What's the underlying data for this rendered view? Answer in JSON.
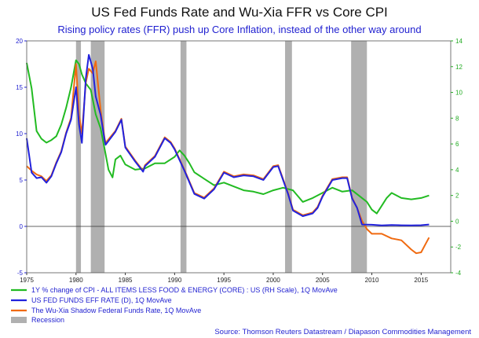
{
  "title": "US Fed Funds Rate and Wu-Xia FFR vs Core CPI",
  "subtitle": "Rising policy rates (FFR) push up Core Inflation, instead of the other way around",
  "source": "Source: Thomson Reuters Datastream / Diapason Commodities Management",
  "colors": {
    "cpi": "#22bb22",
    "ffr": "#2222dd",
    "shadow": "#f06a10",
    "recession": "#b0b0b0",
    "left_axis": "#1f1fd0",
    "right_axis": "#22aa22"
  },
  "chart_data": {
    "type": "line",
    "xlim": [
      1975,
      2018
    ],
    "x_ticks": [
      1975,
      1980,
      1985,
      1990,
      1995,
      2000,
      2005,
      2010,
      2015
    ],
    "left_axis": {
      "ylim": [
        -5,
        20
      ],
      "ticks": [
        -5,
        0,
        5,
        10,
        15,
        20
      ]
    },
    "right_axis": {
      "ylim": [
        -4,
        14
      ],
      "ticks": [
        -4,
        -2,
        0,
        2,
        4,
        6,
        8,
        10,
        12,
        14
      ]
    },
    "grid": false,
    "legend_position": "bottom-left",
    "recessions": [
      [
        1980.0,
        1980.5
      ],
      [
        1981.5,
        1982.9
      ],
      [
        1990.6,
        1991.2
      ],
      [
        2001.2,
        2001.9
      ],
      [
        2007.9,
        2009.5
      ]
    ],
    "series": [
      {
        "key": "cpi",
        "name": "1Y % change of CPI - ALL ITEMS LESS FOOD & ENERGY (CORE) : US (RH Scale), 1Q MovAve",
        "axis": "right",
        "x": [
          1975,
          1975.5,
          1976,
          1976.5,
          1977,
          1977.5,
          1978,
          1978.5,
          1979,
          1979.5,
          1980,
          1980.3,
          1980.6,
          1981,
          1981.5,
          1982,
          1982.5,
          1983,
          1983.3,
          1983.7,
          1984,
          1984.5,
          1985,
          1986,
          1987,
          1988,
          1989,
          1990,
          1990.5,
          1991,
          1991.5,
          1992,
          1993,
          1994,
          1995,
          1996,
          1997,
          1998,
          1999,
          2000,
          2001,
          2002,
          2003,
          2004,
          2005,
          2006,
          2007,
          2008,
          2009,
          2009.5,
          2010,
          2010.5,
          2011,
          2011.5,
          2012,
          2013,
          2014,
          2015,
          2015.8
        ],
        "values": [
          12.3,
          10.3,
          7.0,
          6.4,
          6.1,
          6.3,
          6.6,
          7.5,
          8.8,
          10.4,
          12.5,
          12.2,
          11.4,
          10.7,
          10.2,
          8.3,
          7.2,
          5.2,
          4.0,
          3.4,
          4.8,
          5.1,
          4.4,
          4.0,
          4.1,
          4.5,
          4.5,
          5.0,
          5.5,
          5.1,
          4.5,
          3.8,
          3.3,
          2.8,
          3.0,
          2.7,
          2.4,
          2.3,
          2.1,
          2.4,
          2.6,
          2.4,
          1.5,
          1.8,
          2.2,
          2.6,
          2.3,
          2.4,
          1.8,
          1.5,
          0.9,
          0.6,
          1.2,
          1.8,
          2.2,
          1.8,
          1.7,
          1.8,
          2.0
        ]
      },
      {
        "key": "ffr",
        "name": "US FED FUNDS EFF RATE (D), 1Q MovAve",
        "axis": "left",
        "x": [
          1975,
          1975.5,
          1976,
          1976.5,
          1977,
          1977.5,
          1978,
          1978.5,
          1979,
          1979.5,
          1980,
          1980.3,
          1980.6,
          1981,
          1981.3,
          1981.7,
          1982,
          1982.5,
          1982.9,
          1983,
          1984,
          1984.6,
          1985,
          1986,
          1986.8,
          1987,
          1988,
          1989,
          1989.6,
          1990,
          1991,
          1992,
          1993,
          1994,
          1995,
          1996,
          1997,
          1998,
          1999,
          2000,
          2000.5,
          2001,
          2001.5,
          2002,
          2003,
          2004,
          2004.5,
          2005,
          2006,
          2007,
          2007.5,
          2008,
          2008.5,
          2009,
          2010,
          2011,
          2012,
          2013,
          2014,
          2015,
          2015.8
        ],
        "values": [
          9.5,
          5.8,
          5.2,
          5.3,
          4.7,
          5.4,
          6.8,
          8.0,
          10.0,
          11.5,
          15.0,
          11.0,
          9.0,
          16.0,
          18.5,
          17.0,
          14.0,
          12.0,
          9.3,
          8.8,
          10.2,
          11.5,
          8.5,
          7.0,
          5.9,
          6.5,
          7.5,
          9.5,
          9.0,
          8.3,
          6.0,
          3.5,
          3.0,
          4.0,
          5.8,
          5.3,
          5.5,
          5.4,
          5.0,
          6.4,
          6.5,
          5.0,
          3.5,
          1.7,
          1.1,
          1.4,
          2.0,
          3.2,
          5.0,
          5.2,
          5.2,
          3.0,
          2.0,
          0.2,
          0.18,
          0.1,
          0.15,
          0.12,
          0.1,
          0.13,
          0.2
        ]
      },
      {
        "key": "shadow",
        "name": "The Wu-Xia Shadow Federal Funds Rate, 1Q MovAve",
        "axis": "left",
        "x": [
          1975,
          1975.5,
          1976,
          1976.5,
          1977,
          1977.5,
          1978,
          1978.5,
          1979,
          1979.5,
          1980,
          1980.3,
          1980.6,
          1981,
          1981.3,
          1981.7,
          1982,
          1982.5,
          1982.9,
          1983,
          1984,
          1984.6,
          1985,
          1986,
          1986.8,
          1987,
          1988,
          1989,
          1989.6,
          1990,
          1991,
          1992,
          1993,
          1994,
          1995,
          1996,
          1997,
          1998,
          1999,
          2000,
          2000.5,
          2001,
          2001.5,
          2002,
          2003,
          2004,
          2004.5,
          2005,
          2006,
          2007,
          2007.5,
          2008,
          2008.5,
          2009,
          2009.5,
          2010,
          2011,
          2012,
          2013,
          2014,
          2014.5,
          2015,
          2015.5,
          2015.8
        ],
        "values": [
          6.5,
          6.0,
          5.6,
          5.4,
          4.9,
          5.5,
          6.9,
          8.1,
          10.1,
          11.7,
          17.5,
          12.0,
          10.0,
          15.5,
          17.0,
          16.5,
          17.8,
          12.5,
          9.5,
          9.0,
          10.3,
          11.6,
          8.6,
          7.1,
          6.0,
          6.6,
          7.6,
          9.6,
          9.1,
          8.4,
          6.1,
          3.6,
          3.1,
          4.1,
          5.9,
          5.4,
          5.6,
          5.5,
          5.1,
          6.5,
          6.6,
          5.1,
          3.6,
          1.8,
          1.2,
          1.5,
          2.1,
          3.3,
          5.1,
          5.3,
          5.3,
          3.1,
          2.0,
          0.6,
          -0.3,
          -0.8,
          -0.8,
          -1.3,
          -1.5,
          -2.5,
          -2.9,
          -2.8,
          -1.8,
          -1.2
        ]
      }
    ],
    "recession_label": "Recession"
  }
}
